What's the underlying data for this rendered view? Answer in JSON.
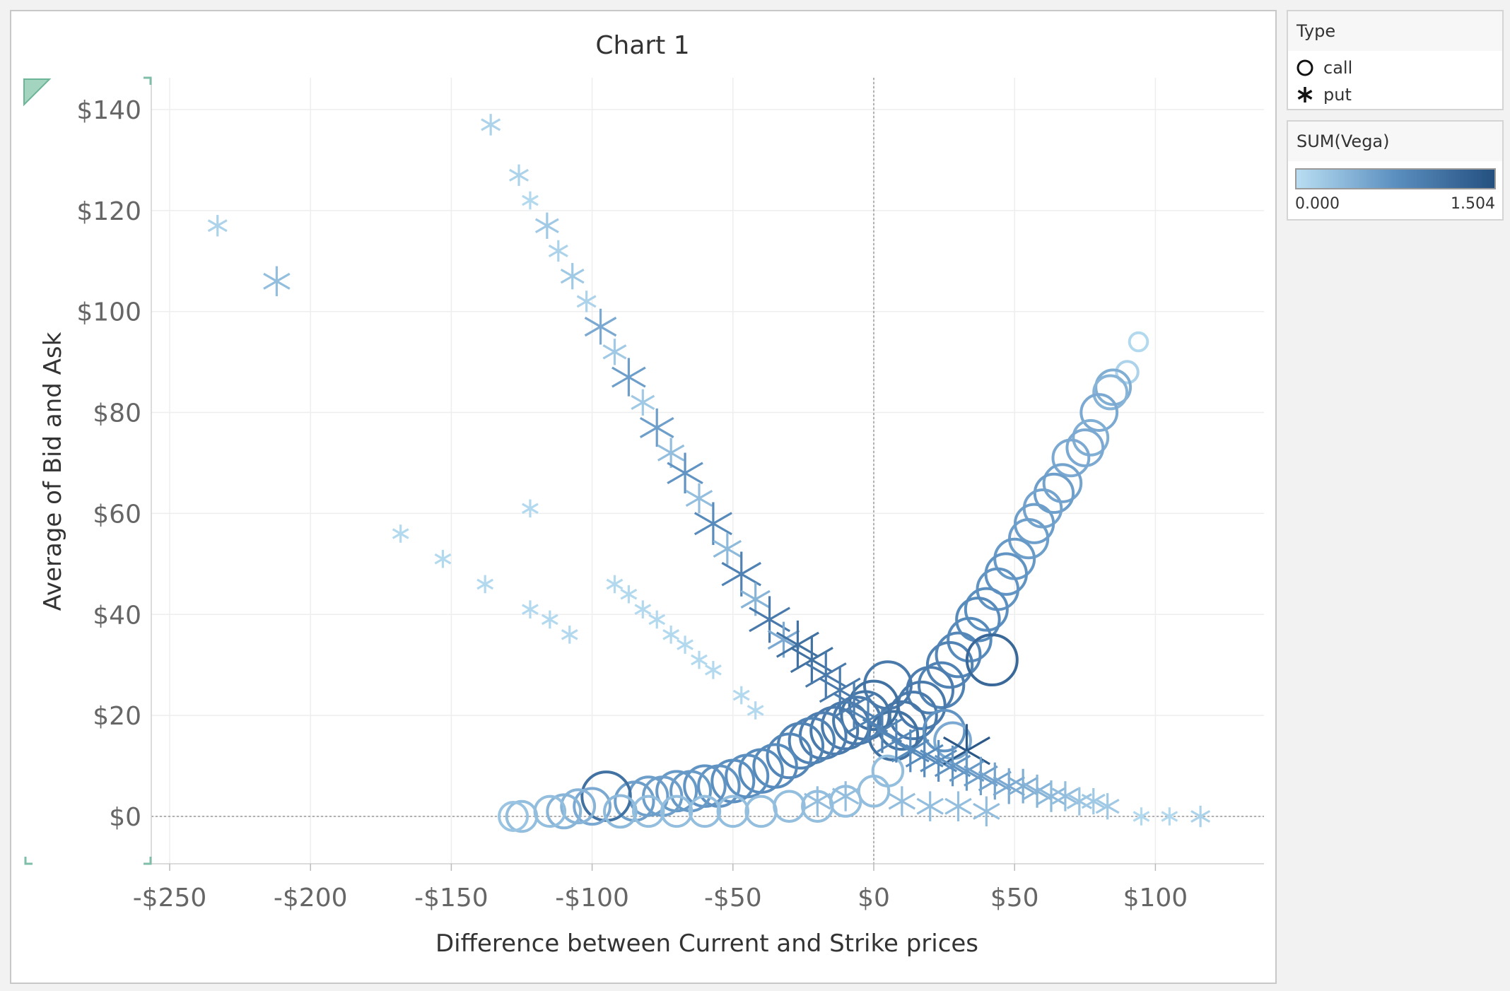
{
  "chart_data": {
    "type": "scatter",
    "title": "Chart 1",
    "xlabel": "Difference between Current and Strike prices",
    "ylabel": "Average of Bid and Ask",
    "xlim": [
      -255,
      140
    ],
    "ylim": [
      -10,
      147
    ],
    "x_ticks": [
      -250,
      -200,
      -150,
      -100,
      -50,
      0,
      50,
      100
    ],
    "x_tick_labels": [
      "-$250",
      "-$200",
      "-$150",
      "-$100",
      "-$50",
      "$0",
      "$50",
      "$100"
    ],
    "y_ticks": [
      0,
      20,
      40,
      60,
      80,
      100,
      120,
      140
    ],
    "y_tick_labels": [
      "$0",
      "$20",
      "$40",
      "$60",
      "$80",
      "$100",
      "$120",
      "$140"
    ],
    "grid": true,
    "reference_lines": {
      "x": 0,
      "y": 0
    },
    "series": [
      {
        "name": "call",
        "shape": "circle",
        "points": [
          {
            "x": 94,
            "y": 94,
            "vega": 0.05
          },
          {
            "x": 90,
            "y": 88,
            "vega": 0.1
          },
          {
            "x": 85,
            "y": 85,
            "vega": 0.45
          },
          {
            "x": 84,
            "y": 84,
            "vega": 0.4
          },
          {
            "x": 80,
            "y": 80,
            "vega": 0.5
          },
          {
            "x": 77,
            "y": 75,
            "vega": 0.45
          },
          {
            "x": 75,
            "y": 73,
            "vega": 0.5
          },
          {
            "x": 70,
            "y": 71,
            "vega": 0.5
          },
          {
            "x": 67,
            "y": 66,
            "vega": 0.55
          },
          {
            "x": 64,
            "y": 64,
            "vega": 0.6
          },
          {
            "x": 60,
            "y": 61,
            "vega": 0.55
          },
          {
            "x": 57,
            "y": 58,
            "vega": 0.6
          },
          {
            "x": 55,
            "y": 55,
            "vega": 0.6
          },
          {
            "x": 50,
            "y": 51,
            "vega": 0.65
          },
          {
            "x": 47,
            "y": 48,
            "vega": 0.7
          },
          {
            "x": 44,
            "y": 45,
            "vega": 0.7
          },
          {
            "x": 40,
            "y": 41,
            "vega": 0.75
          },
          {
            "x": 37,
            "y": 39,
            "vega": 0.8
          },
          {
            "x": 34,
            "y": 35,
            "vega": 0.8
          },
          {
            "x": 30,
            "y": 32,
            "vega": 0.85
          },
          {
            "x": 27,
            "y": 30,
            "vega": 0.9
          },
          {
            "x": 24,
            "y": 26,
            "vega": 0.9
          },
          {
            "x": 20,
            "y": 25,
            "vega": 0.95
          },
          {
            "x": 17,
            "y": 22,
            "vega": 1.0
          },
          {
            "x": 14,
            "y": 20,
            "vega": 1.0
          },
          {
            "x": 10,
            "y": 18,
            "vega": 1.05
          },
          {
            "x": 7,
            "y": 16,
            "vega": 1.1
          },
          {
            "x": 42,
            "y": 31,
            "vega": 1.2
          },
          {
            "x": 25,
            "y": 17,
            "vega": 0.7
          },
          {
            "x": 28,
            "y": 15,
            "vega": 0.5
          },
          {
            "x": 5,
            "y": 26,
            "vega": 1.0
          },
          {
            "x": 0,
            "y": 22,
            "vega": 1.1
          },
          {
            "x": -3,
            "y": 20,
            "vega": 1.05
          },
          {
            "x": -6,
            "y": 19,
            "vega": 1.0
          },
          {
            "x": -10,
            "y": 18,
            "vega": 1.0
          },
          {
            "x": -14,
            "y": 17,
            "vega": 1.0
          },
          {
            "x": -18,
            "y": 16,
            "vega": 0.95
          },
          {
            "x": -22,
            "y": 15,
            "vega": 0.9
          },
          {
            "x": -26,
            "y": 14,
            "vega": 0.9
          },
          {
            "x": -30,
            "y": 12,
            "vega": 0.85
          },
          {
            "x": -35,
            "y": 10,
            "vega": 0.8
          },
          {
            "x": -40,
            "y": 9,
            "vega": 0.8
          },
          {
            "x": -45,
            "y": 8,
            "vega": 0.75
          },
          {
            "x": -50,
            "y": 7,
            "vega": 0.75
          },
          {
            "x": -55,
            "y": 6,
            "vega": 0.7
          },
          {
            "x": -60,
            "y": 6,
            "vega": 0.7
          },
          {
            "x": -65,
            "y": 5,
            "vega": 0.65
          },
          {
            "x": -70,
            "y": 5,
            "vega": 0.65
          },
          {
            "x": -75,
            "y": 4,
            "vega": 0.6
          },
          {
            "x": -80,
            "y": 4,
            "vega": 0.6
          },
          {
            "x": -85,
            "y": 3,
            "vega": 0.6
          },
          {
            "x": -95,
            "y": 4,
            "vega": 1.1
          },
          {
            "x": -100,
            "y": 2,
            "vega": 0.5
          },
          {
            "x": -105,
            "y": 2,
            "vega": 0.4
          },
          {
            "x": -110,
            "y": 1,
            "vega": 0.4
          },
          {
            "x": -115,
            "y": 1,
            "vega": 0.3
          },
          {
            "x": -125,
            "y": 0,
            "vega": 0.3
          },
          {
            "x": -128,
            "y": 0,
            "vega": 0.25
          },
          {
            "x": -90,
            "y": 1,
            "vega": 0.35
          },
          {
            "x": -80,
            "y": 1,
            "vega": 0.3
          },
          {
            "x": -70,
            "y": 1,
            "vega": 0.3
          },
          {
            "x": -60,
            "y": 1,
            "vega": 0.3
          },
          {
            "x": -50,
            "y": 1,
            "vega": 0.3
          },
          {
            "x": -40,
            "y": 1,
            "vega": 0.3
          },
          {
            "x": -30,
            "y": 2,
            "vega": 0.3
          },
          {
            "x": -20,
            "y": 2,
            "vega": 0.3
          },
          {
            "x": -10,
            "y": 3,
            "vega": 0.3
          },
          {
            "x": 0,
            "y": 5,
            "vega": 0.3
          },
          {
            "x": 5,
            "y": 9,
            "vega": 0.3
          }
        ]
      },
      {
        "name": "put",
        "shape": "asterisk",
        "points": [
          {
            "x": -233,
            "y": 117,
            "vega": 0.1
          },
          {
            "x": -212,
            "y": 106,
            "vega": 0.3
          },
          {
            "x": -136,
            "y": 137,
            "vega": 0.1
          },
          {
            "x": -126,
            "y": 127,
            "vega": 0.1
          },
          {
            "x": -122,
            "y": 122,
            "vega": 0.05
          },
          {
            "x": -116,
            "y": 117,
            "vega": 0.2
          },
          {
            "x": -112,
            "y": 112,
            "vega": 0.1
          },
          {
            "x": -107,
            "y": 107,
            "vega": 0.2
          },
          {
            "x": -102,
            "y": 102,
            "vega": 0.1
          },
          {
            "x": -97,
            "y": 97,
            "vega": 0.5
          },
          {
            "x": -92,
            "y": 92,
            "vega": 0.2
          },
          {
            "x": -87,
            "y": 87,
            "vega": 0.6
          },
          {
            "x": -82,
            "y": 82,
            "vega": 0.2
          },
          {
            "x": -77,
            "y": 77,
            "vega": 0.6
          },
          {
            "x": -72,
            "y": 72,
            "vega": 0.3
          },
          {
            "x": -67,
            "y": 68,
            "vega": 0.7
          },
          {
            "x": -62,
            "y": 63,
            "vega": 0.3
          },
          {
            "x": -57,
            "y": 58,
            "vega": 0.8
          },
          {
            "x": -52,
            "y": 53,
            "vega": 0.35
          },
          {
            "x": -47,
            "y": 48,
            "vega": 0.9
          },
          {
            "x": -42,
            "y": 43,
            "vega": 0.4
          },
          {
            "x": -37,
            "y": 39,
            "vega": 1.0
          },
          {
            "x": -32,
            "y": 35,
            "vega": 0.5
          },
          {
            "x": -27,
            "y": 34,
            "vega": 1.1
          },
          {
            "x": -22,
            "y": 31,
            "vega": 1.1
          },
          {
            "x": -17,
            "y": 28,
            "vega": 1.0
          },
          {
            "x": -12,
            "y": 25,
            "vega": 1.0
          },
          {
            "x": -7,
            "y": 22,
            "vega": 0.95
          },
          {
            "x": -2,
            "y": 19,
            "vega": 0.9
          },
          {
            "x": 3,
            "y": 17,
            "vega": 0.9
          },
          {
            "x": 8,
            "y": 15,
            "vega": 0.85
          },
          {
            "x": 13,
            "y": 13,
            "vega": 0.8
          },
          {
            "x": 18,
            "y": 12,
            "vega": 0.8
          },
          {
            "x": 23,
            "y": 11,
            "vega": 0.75
          },
          {
            "x": 33,
            "y": 13,
            "vega": 1.4
          },
          {
            "x": 28,
            "y": 10,
            "vega": 0.7
          },
          {
            "x": 33,
            "y": 9,
            "vega": 0.65
          },
          {
            "x": 38,
            "y": 8,
            "vega": 0.6
          },
          {
            "x": 43,
            "y": 7,
            "vega": 0.55
          },
          {
            "x": 48,
            "y": 6,
            "vega": 0.5
          },
          {
            "x": 53,
            "y": 6,
            "vega": 0.45
          },
          {
            "x": 58,
            "y": 5,
            "vega": 0.4
          },
          {
            "x": 63,
            "y": 4,
            "vega": 0.35
          },
          {
            "x": 68,
            "y": 4,
            "vega": 0.3
          },
          {
            "x": 73,
            "y": 3,
            "vega": 0.25
          },
          {
            "x": 78,
            "y": 3,
            "vega": 0.2
          },
          {
            "x": 83,
            "y": 2,
            "vega": 0.2
          },
          {
            "x": 95,
            "y": 0,
            "vega": 0.05
          },
          {
            "x": 105,
            "y": 0,
            "vega": 0.05
          },
          {
            "x": 116,
            "y": 0,
            "vega": 0.1
          },
          {
            "x": -168,
            "y": 56,
            "vega": 0.05
          },
          {
            "x": -153,
            "y": 51,
            "vega": 0.05
          },
          {
            "x": -138,
            "y": 46,
            "vega": 0.05
          },
          {
            "x": -122,
            "y": 41,
            "vega": 0.05
          },
          {
            "x": -115,
            "y": 39,
            "vega": 0.05
          },
          {
            "x": -108,
            "y": 36,
            "vega": 0.05
          },
          {
            "x": -122,
            "y": 61,
            "vega": 0.05
          },
          {
            "x": -92,
            "y": 46,
            "vega": 0.05
          },
          {
            "x": -87,
            "y": 44,
            "vega": 0.05
          },
          {
            "x": -82,
            "y": 41,
            "vega": 0.05
          },
          {
            "x": -77,
            "y": 39,
            "vega": 0.05
          },
          {
            "x": -72,
            "y": 36,
            "vega": 0.05
          },
          {
            "x": -67,
            "y": 34,
            "vega": 0.05
          },
          {
            "x": -62,
            "y": 31,
            "vega": 0.05
          },
          {
            "x": -57,
            "y": 29,
            "vega": 0.05
          },
          {
            "x": -47,
            "y": 24,
            "vega": 0.05
          },
          {
            "x": -42,
            "y": 21,
            "vega": 0.05
          },
          {
            "x": -20,
            "y": 3,
            "vega": 0.3
          },
          {
            "x": -10,
            "y": 4,
            "vega": 0.3
          },
          {
            "x": 10,
            "y": 3,
            "vega": 0.3
          },
          {
            "x": 20,
            "y": 2,
            "vega": 0.3
          },
          {
            "x": 30,
            "y": 2,
            "vega": 0.3
          },
          {
            "x": 40,
            "y": 1,
            "vega": 0.3
          }
        ]
      }
    ]
  },
  "legend_type": {
    "title": "Type",
    "items": [
      {
        "label": "call",
        "icon": "circle-icon"
      },
      {
        "label": "put",
        "icon": "asterisk-icon"
      }
    ]
  },
  "legend_vega": {
    "title": "SUM(Vega)",
    "min_label": "0.000",
    "max_label": "1.504",
    "min": 0.0,
    "max": 1.504,
    "color_low": "#b9def2",
    "color_mid": "#5b8fc0",
    "color_high": "#24507f"
  }
}
